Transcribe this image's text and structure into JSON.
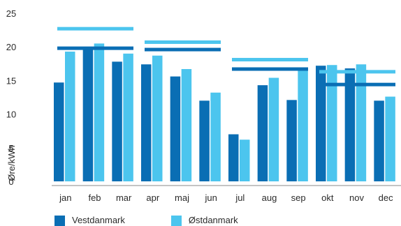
{
  "chart_data": {
    "type": "bar",
    "title": "",
    "xlabel": "",
    "ylabel": "Øre/kWh",
    "ylim": [
      0,
      25
    ],
    "yticks": [
      0,
      5,
      10,
      15,
      20,
      25
    ],
    "grid": false,
    "legend_position": "bottom-left",
    "categories": [
      "jan",
      "feb",
      "mar",
      "apr",
      "maj",
      "jun",
      "jul",
      "aug",
      "sep",
      "okt",
      "nov",
      "dec"
    ],
    "series": [
      {
        "name": "Vestdanmark",
        "color": "#0a6eb4",
        "values": [
          14.7,
          20.0,
          17.8,
          17.4,
          15.6,
          12.0,
          7.0,
          14.3,
          12.1,
          17.2,
          16.8,
          12.0
        ]
      },
      {
        "name": "Østdanmark",
        "color": "#4cc5ee",
        "values": [
          19.3,
          20.5,
          19.0,
          18.7,
          16.7,
          13.2,
          6.2,
          15.4,
          16.8,
          17.3,
          17.4,
          12.6
        ]
      }
    ],
    "average_lines": [
      {
        "series": "Vestdanmark",
        "value": 19.8,
        "from": "jan",
        "to": "mar"
      },
      {
        "series": "Østdanmark",
        "value": 22.7,
        "from": "jan",
        "to": "mar"
      },
      {
        "series": "Vestdanmark",
        "value": 19.6,
        "from": "apr",
        "to": "jun"
      },
      {
        "series": "Østdanmark",
        "value": 20.7,
        "from": "apr",
        "to": "jun"
      },
      {
        "series": "Vestdanmark",
        "value": 16.7,
        "from": "jul",
        "to": "sep"
      },
      {
        "series": "Østdanmark",
        "value": 18.1,
        "from": "jul",
        "to": "sep"
      },
      {
        "series": "Vestdanmark",
        "value": 14.4,
        "from": "okt",
        "to": "dec"
      },
      {
        "series": "Østdanmark",
        "value": 16.3,
        "from": "okt",
        "to": "dec"
      }
    ]
  },
  "legend": {
    "items": [
      {
        "label": "Vestdanmark",
        "color": "#0a6eb4"
      },
      {
        "label": "Østdanmark",
        "color": "#4cc5ee"
      }
    ]
  }
}
